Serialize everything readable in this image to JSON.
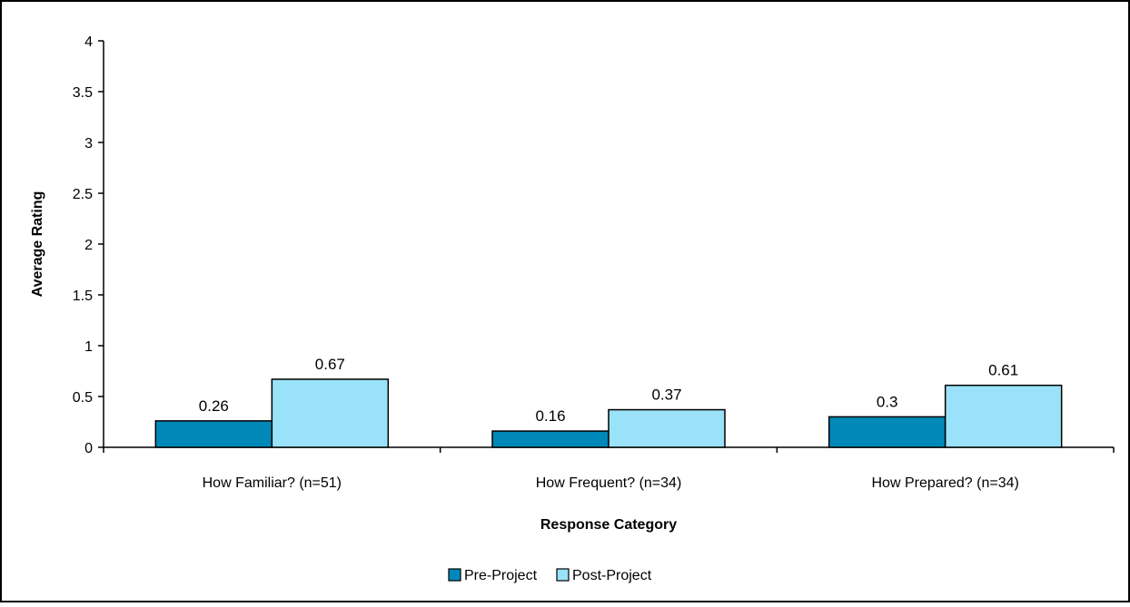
{
  "chart_data": {
    "type": "bar",
    "title": "",
    "xlabel": "Response Category",
    "ylabel": "Average Rating",
    "ylim": [
      0,
      4
    ],
    "yticks": [
      "0",
      "0.5",
      "1",
      "1.5",
      "2",
      "2.5",
      "3",
      "3.5",
      "4"
    ],
    "categories": [
      "How Familiar? (n=51)",
      "How Frequent? (n=34)",
      "How Prepared? (n=34)"
    ],
    "series": [
      {
        "name": "Pre-Project",
        "values": [
          0.26,
          0.16,
          0.3
        ],
        "labels": [
          "0.26",
          "0.16",
          "0.3"
        ],
        "color": "#0089b8"
      },
      {
        "name": "Post-Project",
        "values": [
          0.67,
          0.37,
          0.61
        ],
        "labels": [
          "0.67",
          "0.37",
          "0.61"
        ],
        "color": "#99e2f9"
      }
    ],
    "grid": false,
    "legend_position": "bottom"
  }
}
